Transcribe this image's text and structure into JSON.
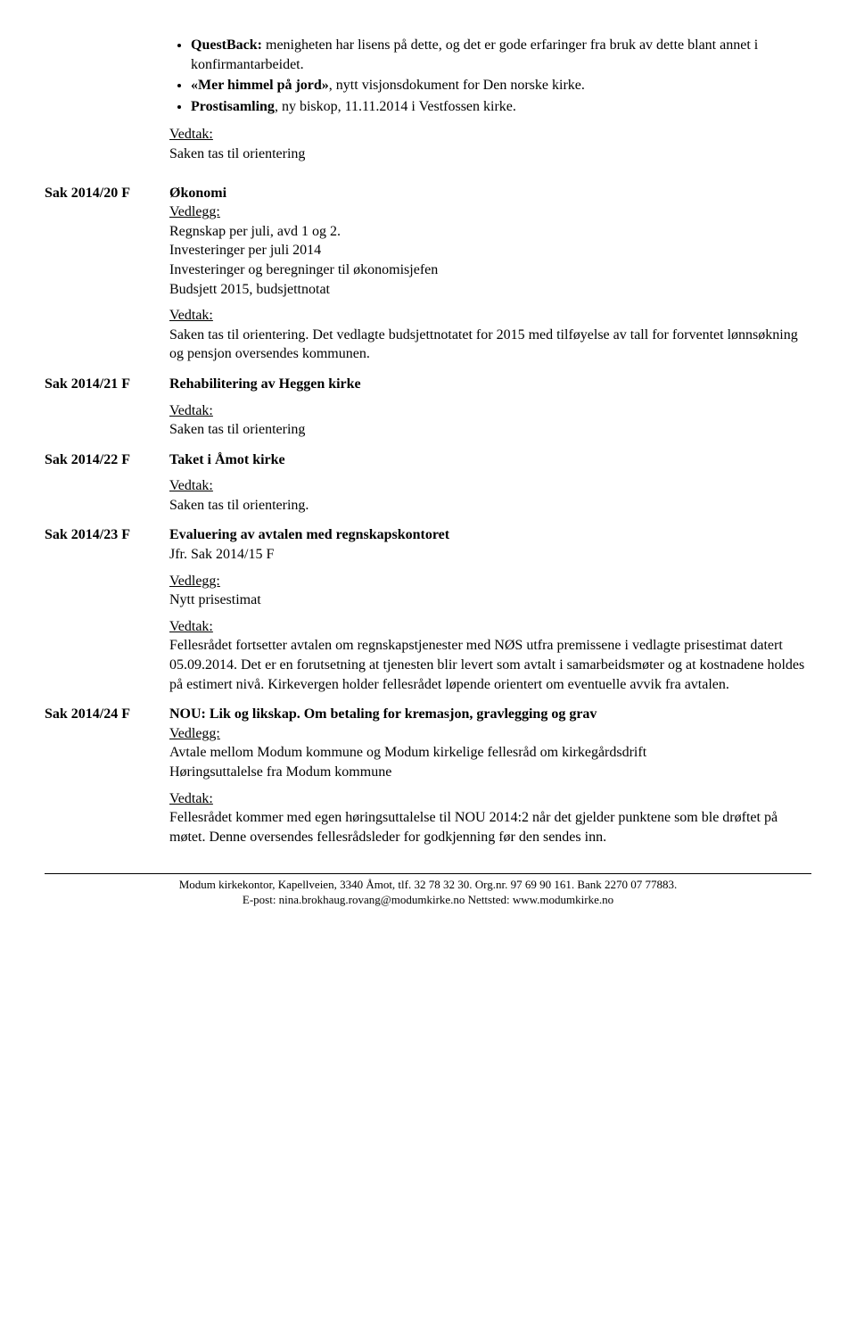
{
  "intro": {
    "bullets": [
      {
        "prefix": "QuestBack:",
        "text": " menigheten har lisens på dette, og det er gode erfaringer fra bruk av dette blant annet i konfirmantarbeidet."
      },
      {
        "prefix": "«Mer himmel på jord»",
        "text": ", nytt visjonsdokument for Den norske kirke."
      },
      {
        "prefix": "Prostisamling",
        "text": ", ny biskop, 11.11.2014 i Vestfossen kirke."
      }
    ],
    "vedtak_label": "Vedtak:",
    "vedtak_text": "Saken tas til orientering"
  },
  "sak20": {
    "id": "Sak 2014/20 F",
    "title": "Økonomi",
    "vedlegg_label": "Vedlegg:",
    "vedlegg_lines": [
      "Regnskap per juli, avd 1 og 2.",
      "Investeringer per juli 2014",
      "Investeringer og beregninger til økonomisjefen",
      "Budsjett 2015, budsjettnotat"
    ],
    "vedtak_label": "Vedtak:",
    "vedtak_text": "Saken tas til orientering. Det vedlagte budsjettnotatet for 2015 med tilføyelse av tall for forventet lønnsøkning og pensjon oversendes kommunen."
  },
  "sak21": {
    "id": "Sak 2014/21 F",
    "title": "Rehabilitering av Heggen kirke",
    "vedtak_label": "Vedtak:",
    "vedtak_text": "Saken tas til orientering"
  },
  "sak22": {
    "id": "Sak 2014/22 F",
    "title": "Taket i Åmot kirke",
    "vedtak_label": "Vedtak:",
    "vedtak_text": "Saken tas til orientering."
  },
  "sak23": {
    "id": "Sak 2014/23 F",
    "title": "Evaluering av avtalen med regnskapskontoret",
    "subline": "Jfr. Sak 2014/15 F",
    "vedlegg_label": "Vedlegg:",
    "vedlegg_lines": [
      "Nytt prisestimat"
    ],
    "vedtak_label": "Vedtak:",
    "vedtak_text": "Fellesrådet fortsetter avtalen om regnskapstjenester med NØS utfra premissene i vedlagte prisestimat datert 05.09.2014. Det er en forutsetning at tjenesten blir levert som avtalt i samarbeidsmøter og at kostnadene holdes på estimert nivå. Kirkevergen holder fellesrådet løpende orientert om eventuelle avvik fra avtalen."
  },
  "sak24": {
    "id": "Sak 2014/24 F",
    "title": "NOU: Lik og likskap. Om betaling for kremasjon, gravlegging og grav",
    "vedlegg_label": "Vedlegg:",
    "vedlegg_lines": [
      "Avtale mellom Modum kommune og Modum kirkelige fellesråd om kirkegårdsdrift",
      "Høringsuttalelse fra Modum kommune"
    ],
    "vedtak_label": "Vedtak:",
    "vedtak_text": "Fellesrådet kommer med egen høringsuttalelse til NOU 2014:2 når det gjelder punktene som ble drøftet på møtet. Denne oversendes fellesrådsleder for godkjenning før den sendes inn."
  },
  "footer": {
    "line1": "Modum kirkekontor, Kapellveien, 3340 Åmot, tlf. 32 78 32 30. Org.nr. 97 69 90 161. Bank 2270 07 77883.",
    "line2": "E-post: nina.brokhaug.rovang@modumkirke.no  Nettsted: www.modumkirke.no"
  }
}
